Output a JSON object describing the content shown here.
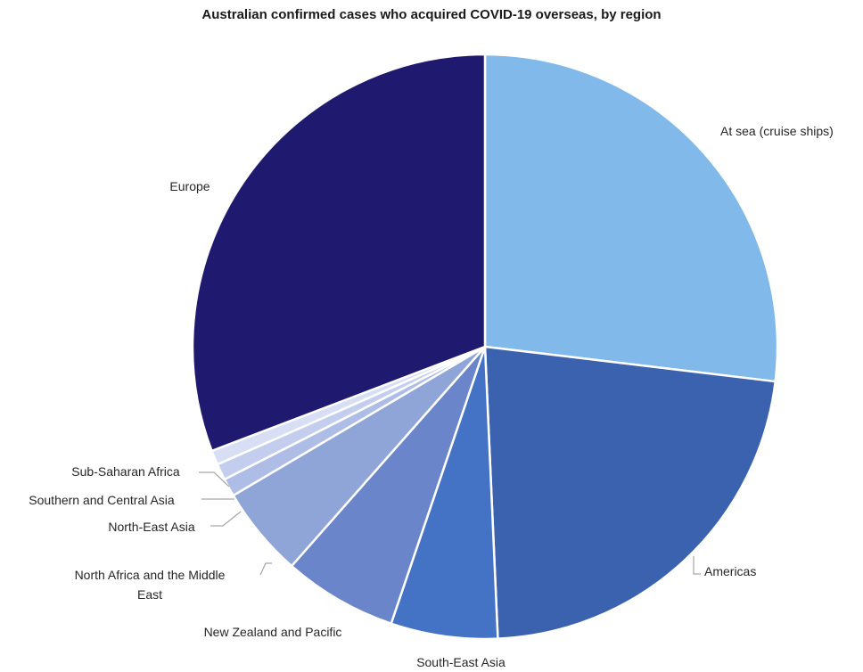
{
  "chart_data": {
    "type": "pie",
    "title": "Australian confirmed cases who acquired COVID-19 overseas, by region",
    "slices": [
      {
        "label": "At sea (cruise ships)",
        "value": 26.9,
        "color": "#80b9ea",
        "label_lines": [
          "At sea (cruise ships)"
        ]
      },
      {
        "label": "Americas",
        "value": 22.4,
        "color": "#3a62ae",
        "label_lines": [
          "Americas"
        ]
      },
      {
        "label": "South-East Asia",
        "value": 5.9,
        "color": "#4472c4",
        "label_lines": [
          "South-East Asia"
        ]
      },
      {
        "label": "New Zealand and Pacific",
        "value": 6.3,
        "color": "#6a85c9",
        "label_lines": [
          "New Zealand and Pacific"
        ]
      },
      {
        "label": "North Africa and the Middle East",
        "value": 5.0,
        "color": "#8fa5d8",
        "label_lines": [
          "North Africa and the Middle",
          "East"
        ]
      },
      {
        "label": "North-East Asia",
        "value": 1.0,
        "color": "#aebde6",
        "label_lines": [
          "North-East Asia"
        ]
      },
      {
        "label": "Southern and Central Asia",
        "value": 0.9,
        "color": "#c3cdee",
        "label_lines": [
          "Southern and Central Asia"
        ]
      },
      {
        "label": "Sub-Saharan Africa",
        "value": 0.8,
        "color": "#d8def4",
        "label_lines": [
          "Sub-Saharan Africa"
        ]
      },
      {
        "label": "Europe",
        "value": 30.8,
        "color": "#1f1a70",
        "label_lines": [
          "Europe"
        ]
      }
    ],
    "legend": "none",
    "start_angle": "12 o'clock",
    "direction": "clockwise"
  }
}
